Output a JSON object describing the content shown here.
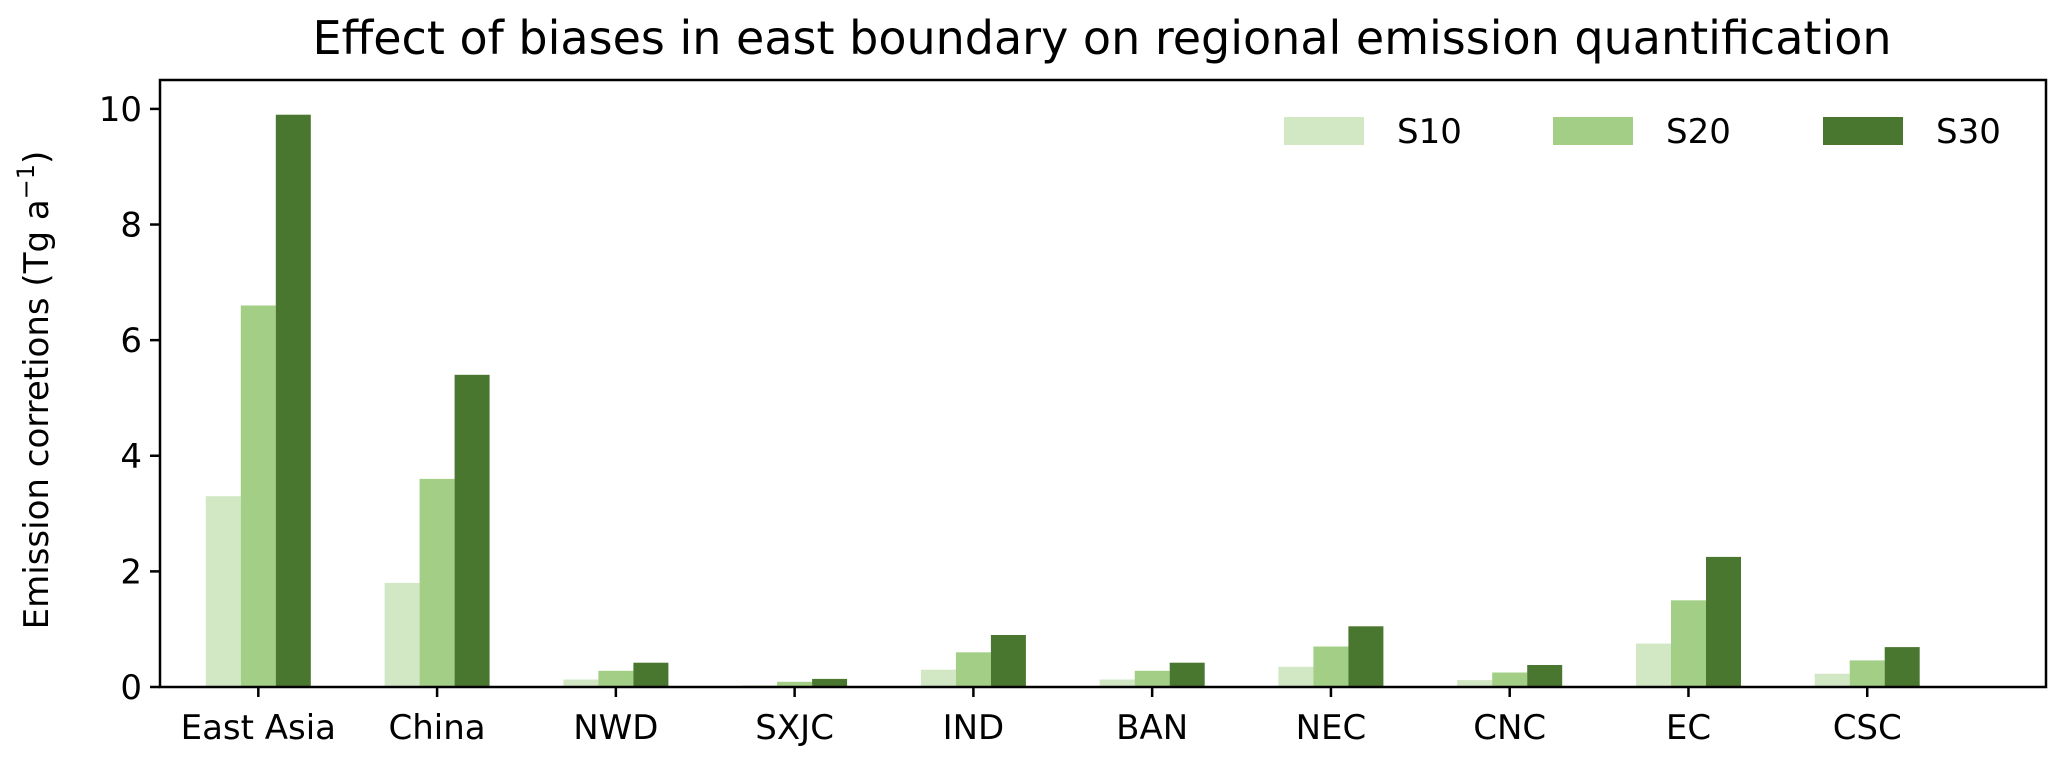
{
  "chart_data": {
    "type": "bar",
    "title": "Effect of biases in east boundary on regional emission quantification",
    "xlabel": "",
    "ylabel": "Emission corretions (Tg a",
    "ylabel_superscript": "−1",
    "ylabel_suffix": ")",
    "categories": [
      "East Asia",
      "China",
      "NWD",
      "SXJC",
      "IND",
      "BAN",
      "NEC",
      "CNC",
      "EC",
      "CSC"
    ],
    "series": [
      {
        "name": "S10",
        "color": "#d2e8c4",
        "values": [
          3.3,
          1.8,
          0.13,
          0.03,
          0.3,
          0.13,
          0.35,
          0.12,
          0.75,
          0.23
        ]
      },
      {
        "name": "S20",
        "color": "#a2cf85",
        "values": [
          6.6,
          3.6,
          0.28,
          0.09,
          0.6,
          0.28,
          0.7,
          0.25,
          1.5,
          0.46
        ]
      },
      {
        "name": "S30",
        "color": "#4a7730",
        "values": [
          9.9,
          5.4,
          0.42,
          0.14,
          0.9,
          0.42,
          1.05,
          0.38,
          2.25,
          0.69
        ]
      }
    ],
    "ylim": [
      0,
      10.5
    ],
    "yticks": [
      0,
      2,
      4,
      6,
      8,
      10
    ],
    "legend_position": "top-right",
    "grid": false
  }
}
